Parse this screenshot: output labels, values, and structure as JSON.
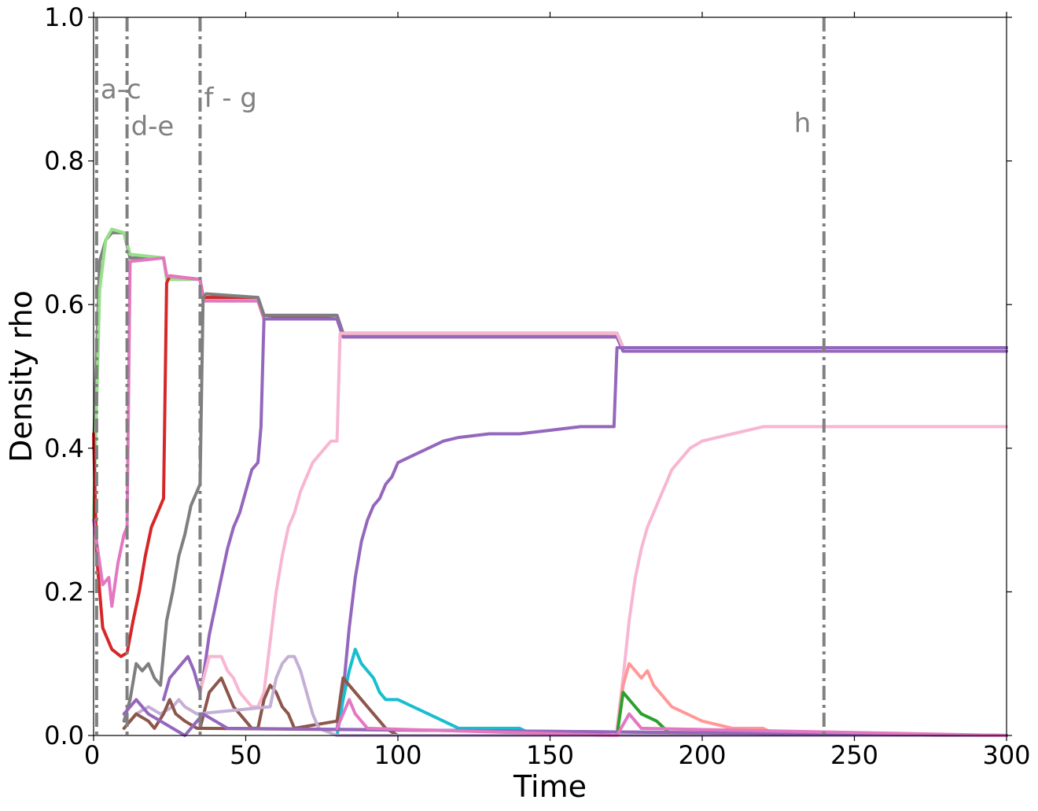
{
  "chart_data": {
    "type": "line",
    "title": "",
    "xlabel": "Time",
    "ylabel": "Density rho",
    "xlim": [
      0,
      300
    ],
    "ylim": [
      0,
      1
    ],
    "xticks": [
      "0",
      "50",
      "100",
      "150",
      "200",
      "250",
      "300"
    ],
    "yticks": [
      "0.0",
      "0.2",
      "0.4",
      "0.6",
      "0.8",
      "1.0"
    ],
    "grid": false,
    "legend": "none",
    "markers": [
      {
        "label": "a-c",
        "x": 1
      },
      {
        "label": "d-e",
        "x": 11
      },
      {
        "label": "f - g",
        "x": 35
      },
      {
        "label": "h",
        "x": 240
      }
    ],
    "series": [
      {
        "color": "#808080",
        "points": [
          [
            0,
            0.4
          ],
          [
            2,
            0.66
          ],
          [
            4,
            0.69
          ],
          [
            6,
            0.7
          ],
          [
            10,
            0.7
          ],
          [
            12,
            0.665
          ],
          [
            23,
            0.665
          ],
          [
            24,
            0.64
          ],
          [
            35,
            0.635
          ],
          [
            36,
            0.61
          ],
          [
            54,
            0.61
          ],
          [
            56,
            0.585
          ],
          [
            80,
            0.585
          ],
          [
            82,
            0.56
          ],
          [
            172,
            0.56
          ],
          [
            174,
            0.54
          ],
          [
            300,
            0.54
          ]
        ]
      },
      {
        "color": "#98df8a",
        "points": [
          [
            0,
            0.3
          ],
          [
            2,
            0.62
          ],
          [
            4,
            0.69
          ],
          [
            6,
            0.705
          ],
          [
            10,
            0.7
          ],
          [
            12,
            0.67
          ],
          [
            23,
            0.665
          ],
          [
            24,
            0.635
          ],
          [
            35,
            0.635
          ],
          [
            36,
            0.605
          ],
          [
            54,
            0.605
          ],
          [
            56,
            0.585
          ],
          [
            80,
            0.58
          ],
          [
            82,
            0.555
          ],
          [
            172,
            0.555
          ],
          [
            174,
            0.535
          ],
          [
            300,
            0.535
          ]
        ]
      },
      {
        "color": "#d62728",
        "points": [
          [
            0,
            0.42
          ],
          [
            1,
            0.25
          ],
          [
            3,
            0.15
          ],
          [
            6,
            0.12
          ],
          [
            9,
            0.11
          ],
          [
            11,
            0.115
          ],
          [
            13,
            0.16
          ],
          [
            15,
            0.2
          ],
          [
            17,
            0.25
          ],
          [
            19,
            0.29
          ],
          [
            21,
            0.31
          ],
          [
            23,
            0.33
          ],
          [
            24,
            0.63
          ],
          [
            25,
            0.64
          ],
          [
            35,
            0.635
          ],
          [
            36,
            0.61
          ],
          [
            54,
            0.61
          ],
          [
            56,
            0.585
          ],
          [
            80,
            0.58
          ],
          [
            82,
            0.555
          ],
          [
            172,
            0.555
          ],
          [
            174,
            0.535
          ],
          [
            300,
            0.535
          ]
        ]
      },
      {
        "color": "#e377c2",
        "points": [
          [
            0,
            0.3
          ],
          [
            3,
            0.21
          ],
          [
            5,
            0.22
          ],
          [
            6,
            0.18
          ],
          [
            8,
            0.24
          ],
          [
            10,
            0.28
          ],
          [
            11,
            0.29
          ],
          [
            12,
            0.66
          ],
          [
            23,
            0.665
          ],
          [
            24,
            0.64
          ],
          [
            35,
            0.635
          ],
          [
            36,
            0.605
          ],
          [
            54,
            0.605
          ],
          [
            56,
            0.58
          ],
          [
            80,
            0.58
          ],
          [
            82,
            0.56
          ],
          [
            172,
            0.56
          ],
          [
            174,
            0.54
          ],
          [
            300,
            0.54
          ]
        ]
      },
      {
        "color": "#7f7f7f",
        "points": [
          [
            10,
            0.02
          ],
          [
            12,
            0.05
          ],
          [
            14,
            0.1
          ],
          [
            16,
            0.09
          ],
          [
            18,
            0.1
          ],
          [
            20,
            0.08
          ],
          [
            22,
            0.07
          ],
          [
            24,
            0.16
          ],
          [
            26,
            0.2
          ],
          [
            28,
            0.25
          ],
          [
            30,
            0.28
          ],
          [
            32,
            0.32
          ],
          [
            34,
            0.34
          ],
          [
            35,
            0.35
          ],
          [
            36,
            0.61
          ],
          [
            37,
            0.615
          ],
          [
            54,
            0.61
          ],
          [
            56,
            0.585
          ],
          [
            80,
            0.585
          ],
          [
            82,
            0.56
          ],
          [
            172,
            0.56
          ],
          [
            174,
            0.54
          ],
          [
            300,
            0.54
          ]
        ]
      },
      {
        "color": "#9467bd",
        "points": [
          [
            23,
            0.05
          ],
          [
            25,
            0.08
          ],
          [
            27,
            0.09
          ],
          [
            29,
            0.1
          ],
          [
            31,
            0.11
          ],
          [
            33,
            0.09
          ],
          [
            35,
            0.06
          ],
          [
            36,
            0.08
          ],
          [
            38,
            0.14
          ],
          [
            40,
            0.18
          ],
          [
            42,
            0.22
          ],
          [
            44,
            0.26
          ],
          [
            46,
            0.29
          ],
          [
            48,
            0.31
          ],
          [
            50,
            0.34
          ],
          [
            52,
            0.37
          ],
          [
            54,
            0.38
          ],
          [
            55,
            0.43
          ],
          [
            56,
            0.58
          ],
          [
            80,
            0.58
          ],
          [
            82,
            0.555
          ],
          [
            172,
            0.555
          ],
          [
            174,
            0.535
          ],
          [
            300,
            0.535
          ]
        ]
      },
      {
        "color": "#f7b6d2",
        "points": [
          [
            35,
            0.06
          ],
          [
            38,
            0.11
          ],
          [
            42,
            0.11
          ],
          [
            44,
            0.09
          ],
          [
            46,
            0.08
          ],
          [
            48,
            0.06
          ],
          [
            50,
            0.05
          ],
          [
            52,
            0.04
          ],
          [
            54,
            0.04
          ],
          [
            56,
            0.06
          ],
          [
            58,
            0.13
          ],
          [
            60,
            0.2
          ],
          [
            62,
            0.25
          ],
          [
            64,
            0.29
          ],
          [
            66,
            0.31
          ],
          [
            68,
            0.34
          ],
          [
            70,
            0.36
          ],
          [
            72,
            0.38
          ],
          [
            74,
            0.39
          ],
          [
            76,
            0.4
          ],
          [
            78,
            0.41
          ],
          [
            80,
            0.41
          ],
          [
            81,
            0.56
          ],
          [
            172,
            0.56
          ],
          [
            174,
            0.54
          ],
          [
            300,
            0.54
          ]
        ]
      },
      {
        "color": "#9467bd",
        "points": [
          [
            80,
            0.01
          ],
          [
            82,
            0.06
          ],
          [
            84,
            0.15
          ],
          [
            86,
            0.22
          ],
          [
            88,
            0.27
          ],
          [
            90,
            0.3
          ],
          [
            92,
            0.32
          ],
          [
            94,
            0.33
          ],
          [
            96,
            0.35
          ],
          [
            98,
            0.36
          ],
          [
            100,
            0.38
          ],
          [
            105,
            0.39
          ],
          [
            110,
            0.4
          ],
          [
            115,
            0.41
          ],
          [
            120,
            0.415
          ],
          [
            130,
            0.42
          ],
          [
            140,
            0.42
          ],
          [
            150,
            0.425
          ],
          [
            160,
            0.43
          ],
          [
            171,
            0.43
          ],
          [
            172,
            0.54
          ],
          [
            174,
            0.54
          ],
          [
            300,
            0.54
          ]
        ]
      },
      {
        "color": "#f7b6d2",
        "points": [
          [
            172,
            0.01
          ],
          [
            174,
            0.08
          ],
          [
            176,
            0.16
          ],
          [
            178,
            0.22
          ],
          [
            180,
            0.26
          ],
          [
            182,
            0.29
          ],
          [
            184,
            0.31
          ],
          [
            186,
            0.33
          ],
          [
            188,
            0.35
          ],
          [
            190,
            0.37
          ],
          [
            192,
            0.38
          ],
          [
            194,
            0.39
          ],
          [
            196,
            0.4
          ],
          [
            200,
            0.41
          ],
          [
            210,
            0.42
          ],
          [
            220,
            0.43
          ],
          [
            300,
            0.43
          ]
        ]
      },
      {
        "color": "#17becf",
        "points": [
          [
            80,
            0.0
          ],
          [
            82,
            0.05
          ],
          [
            84,
            0.09
          ],
          [
            86,
            0.12
          ],
          [
            88,
            0.1
          ],
          [
            90,
            0.09
          ],
          [
            92,
            0.08
          ],
          [
            94,
            0.06
          ],
          [
            96,
            0.05
          ],
          [
            100,
            0.05
          ],
          [
            105,
            0.04
          ],
          [
            110,
            0.03
          ],
          [
            115,
            0.02
          ],
          [
            120,
            0.01
          ],
          [
            140,
            0.01
          ],
          [
            145,
            0.0
          ],
          [
            300,
            0.0
          ]
        ]
      },
      {
        "color": "#ff9896",
        "points": [
          [
            172,
            0.0
          ],
          [
            174,
            0.07
          ],
          [
            176,
            0.1
          ],
          [
            178,
            0.09
          ],
          [
            180,
            0.08
          ],
          [
            182,
            0.09
          ],
          [
            184,
            0.07
          ],
          [
            186,
            0.06
          ],
          [
            188,
            0.05
          ],
          [
            190,
            0.04
          ],
          [
            195,
            0.03
          ],
          [
            200,
            0.02
          ],
          [
            210,
            0.01
          ],
          [
            220,
            0.01
          ],
          [
            225,
            0.0
          ],
          [
            300,
            0.0
          ]
        ]
      },
      {
        "color": "#2ca02c",
        "points": [
          [
            172,
            0.0
          ],
          [
            174,
            0.06
          ],
          [
            176,
            0.05
          ],
          [
            178,
            0.04
          ],
          [
            180,
            0.03
          ],
          [
            185,
            0.02
          ],
          [
            190,
            0.0
          ],
          [
            300,
            0.0
          ]
        ]
      },
      {
        "color": "#8c564b",
        "points": [
          [
            35,
            0.01
          ],
          [
            38,
            0.06
          ],
          [
            40,
            0.07
          ],
          [
            42,
            0.08
          ],
          [
            44,
            0.06
          ],
          [
            46,
            0.04
          ],
          [
            48,
            0.03
          ],
          [
            50,
            0.02
          ],
          [
            52,
            0.01
          ],
          [
            54,
            0.01
          ],
          [
            56,
            0.05
          ],
          [
            58,
            0.07
          ],
          [
            60,
            0.06
          ],
          [
            62,
            0.04
          ],
          [
            64,
            0.03
          ],
          [
            66,
            0.01
          ],
          [
            80,
            0.02
          ],
          [
            82,
            0.08
          ],
          [
            84,
            0.07
          ],
          [
            86,
            0.06
          ],
          [
            88,
            0.05
          ],
          [
            90,
            0.04
          ],
          [
            92,
            0.03
          ],
          [
            94,
            0.02
          ],
          [
            96,
            0.01
          ],
          [
            100,
            0.0
          ],
          [
            300,
            0.0
          ]
        ]
      },
      {
        "color": "#c5b0d5",
        "points": [
          [
            12,
            0.02
          ],
          [
            14,
            0.03
          ],
          [
            18,
            0.04
          ],
          [
            22,
            0.03
          ],
          [
            26,
            0.04
          ],
          [
            28,
            0.05
          ],
          [
            30,
            0.04
          ],
          [
            34,
            0.03
          ],
          [
            58,
            0.04
          ],
          [
            60,
            0.08
          ],
          [
            62,
            0.1
          ],
          [
            64,
            0.11
          ],
          [
            66,
            0.11
          ],
          [
            68,
            0.09
          ],
          [
            70,
            0.06
          ],
          [
            72,
            0.03
          ],
          [
            74,
            0.01
          ],
          [
            80,
            0.0
          ],
          [
            300,
            0.0
          ]
        ]
      },
      {
        "color": "#8c564b",
        "points": [
          [
            10,
            0.01
          ],
          [
            14,
            0.03
          ],
          [
            18,
            0.02
          ],
          [
            20,
            0.01
          ],
          [
            23,
            0.03
          ],
          [
            25,
            0.05
          ],
          [
            27,
            0.03
          ],
          [
            30,
            0.02
          ],
          [
            34,
            0.01
          ],
          [
            300,
            0.0
          ]
        ]
      },
      {
        "color": "#9467bd",
        "points": [
          [
            10,
            0.03
          ],
          [
            14,
            0.05
          ],
          [
            18,
            0.03
          ],
          [
            22,
            0.02
          ],
          [
            26,
            0.01
          ],
          [
            30,
            0.0
          ],
          [
            36,
            0.03
          ],
          [
            40,
            0.02
          ],
          [
            44,
            0.01
          ],
          [
            300,
            0.0
          ]
        ]
      },
      {
        "color": "#e377c2",
        "points": [
          [
            80,
            0.01
          ],
          [
            84,
            0.05
          ],
          [
            86,
            0.03
          ],
          [
            90,
            0.01
          ],
          [
            172,
            0.0
          ],
          [
            176,
            0.03
          ],
          [
            180,
            0.01
          ],
          [
            300,
            0.0
          ]
        ]
      }
    ]
  }
}
